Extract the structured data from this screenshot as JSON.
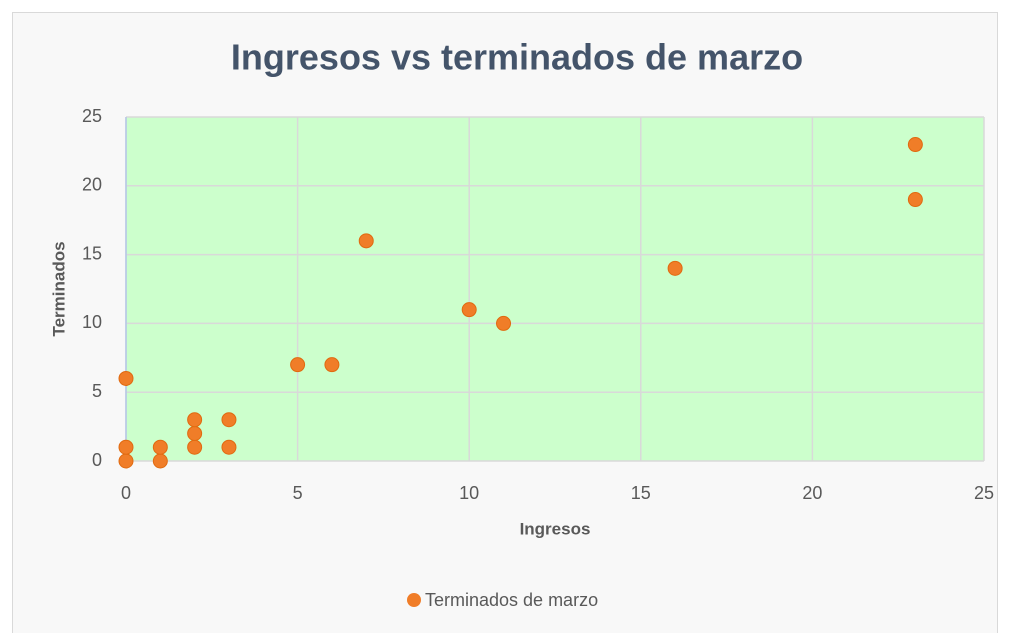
{
  "chart_data": {
    "type": "scatter",
    "title": "Ingresos vs terminados de marzo",
    "x_label": "Ingresos",
    "y_label": "Terminados",
    "series": [
      {
        "name": "Terminados de marzo",
        "color": "#f07d28",
        "x": [
          0,
          0,
          0,
          1,
          1,
          2,
          2,
          2,
          3,
          3,
          5,
          6,
          7,
          10,
          11,
          16,
          23,
          23
        ],
        "values": [
          0,
          1,
          6,
          0,
          1,
          1,
          2,
          3,
          1,
          3,
          7,
          7,
          16,
          11,
          10,
          14,
          23,
          19
        ]
      }
    ],
    "xlim": [
      0,
      25
    ],
    "xticks": [
      0,
      5,
      10,
      15,
      20,
      25
    ],
    "ylim": [
      0,
      25
    ],
    "yticks": [
      0,
      5,
      10,
      15,
      20,
      25
    ],
    "grid": true,
    "plot_background": "#ccffcc",
    "legend": "bottom"
  }
}
